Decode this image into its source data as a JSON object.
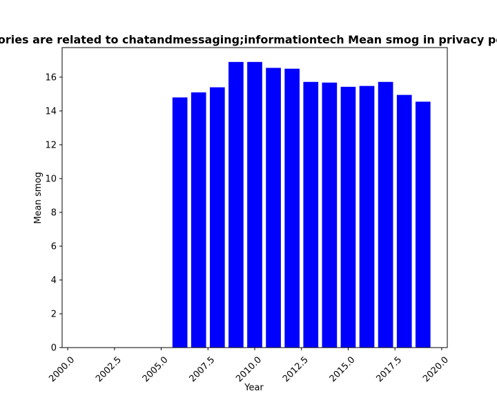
{
  "chart_data": {
    "type": "bar",
    "title": "Categories are related to chatandmessaging;informationtech Mean smog in privacy policies",
    "xlabel": "Year",
    "ylabel": "Mean smog",
    "x": [
      2006,
      2007,
      2008,
      2009,
      2010,
      2011,
      2012,
      2013,
      2014,
      2015,
      2016,
      2017,
      2018,
      2019
    ],
    "values": [
      14.8,
      15.1,
      15.4,
      16.9,
      16.9,
      16.55,
      16.5,
      15.72,
      15.68,
      15.43,
      15.48,
      15.72,
      14.95,
      14.55
    ],
    "xlim": [
      1999.7,
      2020.3
    ],
    "ylim": [
      0,
      17.75
    ],
    "xticks": [
      2000.0,
      2002.5,
      2005.0,
      2007.5,
      2010.0,
      2012.5,
      2015.0,
      2017.5,
      2020.0
    ],
    "xtick_labels": [
      "2000.0",
      "2002.5",
      "2005.0",
      "2007.5",
      "2010.0",
      "2012.5",
      "2015.0",
      "2017.5",
      "2020.0"
    ],
    "yticks": [
      0,
      2,
      4,
      6,
      8,
      10,
      12,
      14,
      16
    ],
    "ytick_labels": [
      "0",
      "2",
      "4",
      "6",
      "8",
      "10",
      "12",
      "14",
      "16"
    ],
    "bar_color": "#0000ff",
    "grid": false,
    "legend": "none"
  }
}
